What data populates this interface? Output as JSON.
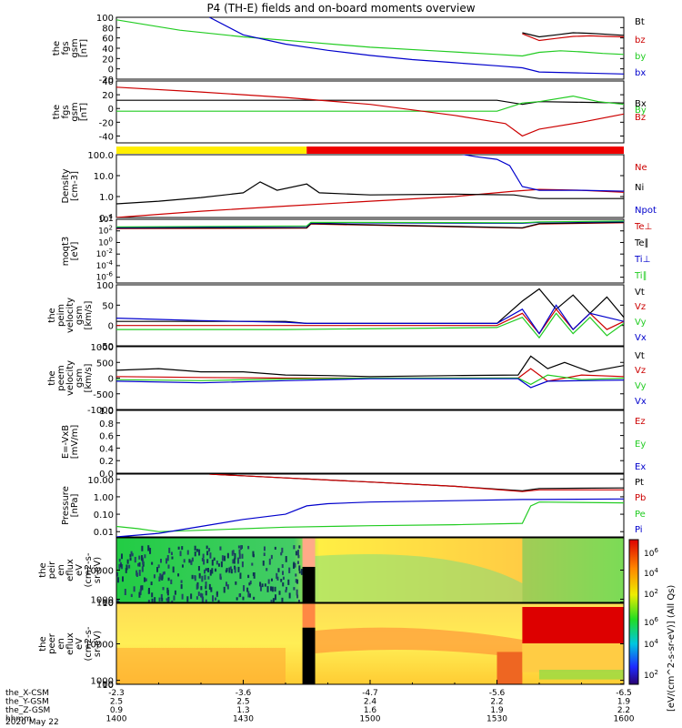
{
  "title": "P4 (TH-E) fields and on-board moments overview",
  "x_axis": {
    "rows": [
      {
        "label": "the_X-CSM",
        "values": [
          "-2.3",
          "-3.6",
          "-4.7",
          "-5.6",
          "-6.5"
        ]
      },
      {
        "label": "the_Y-GSM",
        "values": [
          "2.5",
          "2.5",
          "2.4",
          "2.2",
          "1.9"
        ]
      },
      {
        "label": "the_Z-GSM",
        "values": [
          "0.9",
          "1.3",
          "1.6",
          "1.9",
          "2.2"
        ]
      },
      {
        "label": "hhmm",
        "values": [
          "1400",
          "1430",
          "1500",
          "1530",
          "1600"
        ]
      }
    ],
    "date": "2020 May 22",
    "minutes": [
      0,
      30,
      60,
      90,
      120
    ]
  },
  "colorbar_label": "[eV/(cm^2-s-sr-eV)] (All Qs)",
  "colorbar_ticks": [
    {
      "text": "10",
      "sup": "6"
    },
    {
      "text": "10",
      "sup": "4"
    },
    {
      "text": "10",
      "sup": "2"
    }
  ],
  "colors": {
    "black": "#000000",
    "red": "#cc0000",
    "green": "#22cc22",
    "blue": "#0000cc",
    "yellow": "#ffee00",
    "brightred": "#ee0000"
  },
  "chart_data": [
    {
      "type": "line",
      "id": "fgs-gsm",
      "ylabel": [
        "the",
        "fgs",
        "gsm",
        "[nT]"
      ],
      "ylim": [
        -20,
        100
      ],
      "yticks": [
        "100",
        "80",
        "60",
        "40",
        "20",
        "0",
        "-20"
      ],
      "legend": [
        {
          "name": "Bt",
          "color": "#000000"
        },
        {
          "name": "bz",
          "color": "#cc0000"
        },
        {
          "name": "by",
          "color": "#22cc22"
        },
        {
          "name": "bx",
          "color": "#0000cc"
        }
      ],
      "series": [
        {
          "name": "Bt",
          "color": "#000000",
          "x": [
            96,
            100,
            104,
            108,
            112,
            116,
            120
          ],
          "y": [
            70,
            62,
            66,
            70,
            69,
            67,
            65
          ]
        },
        {
          "name": "bz",
          "color": "#cc0000",
          "x": [
            96,
            100,
            104,
            108,
            112,
            116,
            120
          ],
          "y": [
            68,
            55,
            59,
            63,
            64,
            63,
            62
          ]
        },
        {
          "name": "by",
          "color": "#22cc22",
          "x": [
            0,
            15,
            30,
            45,
            60,
            75,
            90,
            96,
            100,
            105,
            110,
            115,
            120
          ],
          "y": [
            95,
            75,
            62,
            52,
            42,
            35,
            28,
            25,
            32,
            35,
            33,
            30,
            28
          ]
        },
        {
          "name": "bx",
          "color": "#0000cc",
          "x": [
            22,
            30,
            40,
            50,
            60,
            70,
            80,
            90,
            96,
            100,
            110,
            120
          ],
          "y": [
            100,
            66,
            48,
            36,
            26,
            18,
            12,
            6,
            2,
            -6,
            -8,
            -10
          ]
        }
      ]
    },
    {
      "type": "line",
      "id": "fgs-gsm-2",
      "ylabel": [
        "the",
        "fgs",
        "gsm",
        "[nT]"
      ],
      "ylim": [
        -50,
        40
      ],
      "yticks": [
        "40",
        "20",
        "0",
        "-20",
        "-40"
      ],
      "legend": [
        {
          "name": "Bx",
          "color": "#000000"
        },
        {
          "name": "By",
          "color": "#22cc22"
        },
        {
          "name": "Bz",
          "color": "#cc0000"
        }
      ],
      "series": [
        {
          "name": "Bx",
          "color": "#000000",
          "x": [
            0,
            30,
            60,
            90,
            96,
            100,
            110,
            120
          ],
          "y": [
            12,
            12,
            12,
            12,
            6,
            10,
            9,
            8
          ]
        },
        {
          "name": "By",
          "color": "#22cc22",
          "x": [
            0,
            30,
            60,
            90,
            96,
            100,
            108,
            114,
            120
          ],
          "y": [
            -4,
            -4,
            -4,
            -4,
            8,
            10,
            18,
            10,
            6
          ]
        },
        {
          "name": "Bz",
          "color": "#cc0000",
          "x": [
            0,
            20,
            40,
            60,
            80,
            92,
            96,
            100,
            110,
            120
          ],
          "y": [
            31,
            24,
            16,
            6,
            -10,
            -22,
            -40,
            -30,
            -20,
            -8
          ]
        }
      ]
    },
    {
      "type": "bar",
      "id": "mode-bar",
      "segments": [
        {
          "start": 0,
          "end": 45,
          "color": "#ffee00"
        },
        {
          "start": 45,
          "end": 120,
          "color": "#ee0000"
        }
      ]
    },
    {
      "type": "line",
      "id": "density",
      "scale": "log",
      "ylabel": [
        "Density",
        "[cm-3]"
      ],
      "ylim": [
        0.1,
        100
      ],
      "yticks": [
        "100.0",
        "10.0",
        "1.0",
        "0.1"
      ],
      "legend": [
        {
          "name": "Ne",
          "color": "#cc0000"
        },
        {
          "name": "Ni",
          "color": "#000000"
        },
        {
          "name": "Npot",
          "color": "#0000cc"
        }
      ],
      "series": [
        {
          "name": "Ne",
          "color": "#cc0000",
          "x": [
            0,
            20,
            40,
            60,
            80,
            94,
            100,
            110,
            120
          ],
          "y": [
            0.1,
            0.2,
            0.35,
            0.6,
            1.0,
            1.8,
            2.2,
            2.0,
            1.6
          ]
        },
        {
          "name": "Ni",
          "color": "#000000",
          "x": [
            0,
            10,
            20,
            30,
            34,
            38,
            45,
            48,
            60,
            80,
            94,
            100,
            120
          ],
          "y": [
            0.45,
            0.6,
            0.9,
            1.5,
            5,
            2,
            4,
            1.5,
            1.2,
            1.3,
            1.2,
            0.8,
            0.8
          ]
        },
        {
          "name": "Npot",
          "color": "#0000cc",
          "x": [
            80,
            85,
            90,
            93,
            96,
            100,
            110,
            120
          ],
          "y": [
            120,
            80,
            60,
            30,
            3,
            2,
            2,
            1.8
          ]
        }
      ]
    },
    {
      "type": "line",
      "id": "moqt3",
      "scale": "log",
      "ylabel": [
        "moqt3",
        "[eV]"
      ],
      "ylim": [
        1e-07,
        10000
      ],
      "yticks": [
        "10^4",
        "10^2",
        "10^0",
        "10^-2",
        "10^-4",
        "10^-6"
      ],
      "legend": [
        {
          "name": "Te⊥",
          "color": "#cc0000"
        },
        {
          "name": "Te∥",
          "color": "#000000"
        },
        {
          "name": "Ti⊥",
          "color": "#0000cc"
        },
        {
          "name": "Ti∥",
          "color": "#22cc22"
        }
      ],
      "series": [
        {
          "name": "Te⊥",
          "color": "#cc0000",
          "x": [
            0,
            45,
            46,
            96,
            100,
            120
          ],
          "y": [
            250,
            300,
            1500,
            300,
            1500,
            2500
          ]
        },
        {
          "name": "Te∥",
          "color": "#000000",
          "x": [
            0,
            45,
            46,
            96,
            100,
            120
          ],
          "y": [
            300,
            350,
            1800,
            350,
            1800,
            3000
          ]
        },
        {
          "name": "Ti⊥",
          "color": "#0000cc",
          "x": [
            0,
            45,
            46,
            96,
            100,
            120
          ],
          "y": [
            400,
            600,
            2500,
            2000,
            3000,
            4000
          ]
        },
        {
          "name": "Ti∥",
          "color": "#22cc22",
          "x": [
            0,
            45,
            46,
            96,
            100,
            120
          ],
          "y": [
            500,
            700,
            3000,
            2500,
            3500,
            5000
          ]
        }
      ]
    },
    {
      "type": "line",
      "id": "peim-velocity",
      "ylabel": [
        "the",
        "peim",
        "velocity",
        "gsm",
        "[km/s]"
      ],
      "ylim": [
        -50,
        100
      ],
      "yticks": [
        "100",
        "50",
        "0",
        "-50"
      ],
      "legend": [
        {
          "name": "Vt",
          "color": "#000000"
        },
        {
          "name": "Vz",
          "color": "#cc0000"
        },
        {
          "name": "Vy",
          "color": "#22cc22"
        },
        {
          "name": "Vx",
          "color": "#0000cc"
        }
      ],
      "series": [
        {
          "name": "Vt",
          "color": "#000000",
          "x": [
            0,
            40,
            45,
            90,
            96,
            100,
            104,
            108,
            112,
            116,
            120
          ],
          "y": [
            10,
            10,
            5,
            5,
            60,
            90,
            40,
            75,
            30,
            70,
            20
          ]
        },
        {
          "name": "Vz",
          "color": "#cc0000",
          "x": [
            0,
            40,
            90,
            96,
            100,
            104,
            108,
            112,
            116,
            120
          ],
          "y": [
            0,
            0,
            0,
            30,
            -20,
            40,
            -10,
            30,
            -10,
            10
          ]
        },
        {
          "name": "Vy",
          "color": "#22cc22",
          "x": [
            0,
            40,
            90,
            96,
            100,
            104,
            108,
            112,
            116,
            120
          ],
          "y": [
            -10,
            -10,
            -5,
            20,
            -30,
            30,
            -20,
            20,
            -25,
            5
          ]
        },
        {
          "name": "Vx",
          "color": "#0000cc",
          "x": [
            0,
            10,
            20,
            40,
            45,
            90,
            96,
            100,
            104,
            108,
            112,
            120
          ],
          "y": [
            18,
            15,
            12,
            8,
            5,
            5,
            40,
            -20,
            50,
            -10,
            30,
            10
          ]
        }
      ]
    },
    {
      "type": "line",
      "id": "peem-velocity",
      "ylabel": [
        "the",
        "peem",
        "velocity",
        "gsm",
        "[km/s]"
      ],
      "ylim": [
        -1000,
        1000
      ],
      "yticks": [
        "1000",
        "500",
        "0",
        "-500",
        "-1000"
      ],
      "legend": [
        {
          "name": "Vt",
          "color": "#000000"
        },
        {
          "name": "Vz",
          "color": "#cc0000"
        },
        {
          "name": "Vy",
          "color": "#22cc22"
        },
        {
          "name": "Vx",
          "color": "#0000cc"
        }
      ],
      "series": [
        {
          "name": "Vt",
          "color": "#000000",
          "x": [
            0,
            10,
            20,
            30,
            40,
            50,
            60,
            80,
            95,
            98,
            102,
            106,
            112,
            120
          ],
          "y": [
            250,
            300,
            200,
            200,
            100,
            80,
            50,
            80,
            100,
            700,
            300,
            500,
            200,
            400
          ]
        },
        {
          "name": "Vz",
          "color": "#cc0000",
          "x": [
            0,
            20,
            40,
            60,
            95,
            98,
            102,
            110,
            120
          ],
          "y": [
            50,
            20,
            0,
            0,
            0,
            300,
            -100,
            100,
            50
          ]
        },
        {
          "name": "Vy",
          "color": "#22cc22",
          "x": [
            0,
            20,
            40,
            60,
            95,
            98,
            102,
            110,
            120
          ],
          "y": [
            -50,
            -80,
            -30,
            0,
            0,
            -200,
            100,
            -50,
            0
          ]
        },
        {
          "name": "Vx",
          "color": "#0000cc",
          "x": [
            0,
            20,
            40,
            60,
            95,
            98,
            102,
            110,
            120
          ],
          "y": [
            -100,
            -150,
            -80,
            -20,
            -20,
            -300,
            -100,
            -80,
            -60
          ]
        }
      ]
    },
    {
      "type": "line",
      "id": "efield",
      "ylabel": [
        "E=-VxB",
        "[mV/m]"
      ],
      "ylim": [
        0,
        1
      ],
      "yticks": [
        "1.0",
        "0.8",
        "0.6",
        "0.4",
        "0.2",
        "0.0"
      ],
      "legend": [
        {
          "name": "Ez",
          "color": "#cc0000"
        },
        {
          "name": "Ey",
          "color": "#22cc22"
        },
        {
          "name": "Ex",
          "color": "#0000cc"
        }
      ],
      "series": []
    },
    {
      "type": "line",
      "id": "pressure",
      "scale": "log",
      "ylabel": [
        "Pressure",
        "[nPa]"
      ],
      "ylim": [
        0.005,
        20
      ],
      "yticks": [
        "10.00",
        "1.00",
        "0.10",
        "0.01"
      ],
      "legend": [
        {
          "name": "Pt",
          "color": "#000000"
        },
        {
          "name": "Pb",
          "color": "#cc0000"
        },
        {
          "name": "Pe",
          "color": "#22cc22"
        },
        {
          "name": "Pi",
          "color": "#0000cc"
        }
      ],
      "series": [
        {
          "name": "Pt",
          "color": "#000000",
          "x": [
            22,
            40,
            60,
            80,
            96,
            100,
            120
          ],
          "y": [
            20,
            12,
            7,
            4,
            2.2,
            3,
            3.2
          ]
        },
        {
          "name": "Pb",
          "color": "#cc0000",
          "x": [
            22,
            40,
            60,
            80,
            96,
            100,
            120
          ],
          "y": [
            20,
            12,
            7,
            4,
            2.0,
            2.5,
            2.5
          ]
        },
        {
          "name": "Pe",
          "color": "#22cc22",
          "x": [
            0,
            5,
            10,
            20,
            40,
            60,
            80,
            96,
            98,
            100,
            120
          ],
          "y": [
            0.02,
            0.015,
            0.01,
            0.012,
            0.018,
            0.022,
            0.025,
            0.03,
            0.3,
            0.5,
            0.45
          ]
        },
        {
          "name": "Pi",
          "color": "#0000cc",
          "x": [
            0,
            10,
            20,
            30,
            40,
            45,
            50,
            60,
            80,
            96,
            100,
            120
          ],
          "y": [
            0.005,
            0.008,
            0.02,
            0.05,
            0.1,
            0.3,
            0.4,
            0.5,
            0.6,
            0.7,
            0.7,
            0.75
          ]
        }
      ]
    },
    {
      "type": "heatmap",
      "id": "peir-spectrogram",
      "ylabel": [
        "the",
        "peir",
        "en",
        "eflux",
        "eV",
        "(cm2-s-",
        "sr-eV)"
      ],
      "ylim": [
        5,
        20000
      ],
      "yticks": [
        "10000",
        "1000",
        "100",
        "10"
      ]
    },
    {
      "type": "heatmap",
      "id": "peer-spectrogram",
      "ylabel": [
        "the",
        "peer",
        "en",
        "eflux",
        "eV",
        "(cm2-s-",
        "sr-eV)"
      ],
      "ylim": [
        5,
        20000
      ],
      "yticks": [
        "10000",
        "1000",
        "100",
        "10"
      ]
    }
  ]
}
